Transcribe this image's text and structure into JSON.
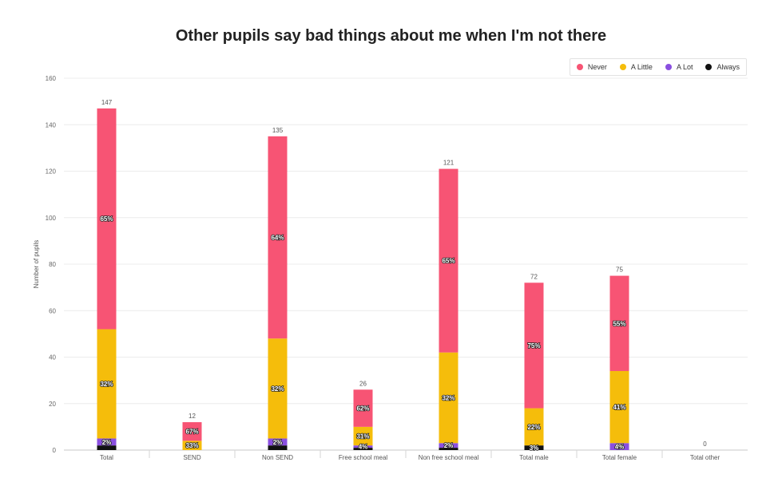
{
  "chart_data": {
    "type": "bar",
    "stacked": true,
    "title": "Other pupils say bad things about me when I'm not there",
    "xlabel": "",
    "ylabel": "Number of pupils",
    "ylim": [
      0,
      160
    ],
    "yticks": [
      0,
      20,
      40,
      60,
      80,
      100,
      120,
      140,
      160
    ],
    "grid": true,
    "legend_position": "top-right",
    "categories": [
      "Total",
      "SEND",
      "Non SEND",
      "Free school meal",
      "Non free school meal",
      "Total male",
      "Total female",
      "Total other"
    ],
    "totals": [
      147,
      12,
      135,
      26,
      121,
      72,
      75,
      0
    ],
    "series": [
      {
        "name": "Always",
        "color": "#111111",
        "values": [
          2,
          0,
          2,
          1,
          1,
          2,
          0,
          0
        ],
        "labels": [
          "",
          "",
          "",
          "",
          "",
          "3%",
          "",
          ""
        ]
      },
      {
        "name": "A Lot",
        "color": "#8a4fe0",
        "values": [
          3,
          0,
          3,
          1,
          2,
          0,
          3,
          0
        ],
        "labels": [
          "2%",
          "",
          "2%",
          "4%",
          "2%",
          "",
          "4%",
          ""
        ]
      },
      {
        "name": "A Little",
        "color": "#f5bd0b",
        "values": [
          47,
          4,
          43,
          8,
          39,
          16,
          31,
          0
        ],
        "labels": [
          "32%",
          "33%",
          "32%",
          "31%",
          "32%",
          "22%",
          "41%",
          ""
        ]
      },
      {
        "name": "Never",
        "color": "#f75474",
        "values": [
          95,
          8,
          87,
          16,
          79,
          54,
          41,
          0
        ],
        "labels": [
          "65%",
          "67%",
          "64%",
          "62%",
          "65%",
          "75%",
          "55%",
          ""
        ]
      }
    ]
  },
  "legend_order": [
    "Never",
    "A Little",
    "A Lot",
    "Always"
  ]
}
